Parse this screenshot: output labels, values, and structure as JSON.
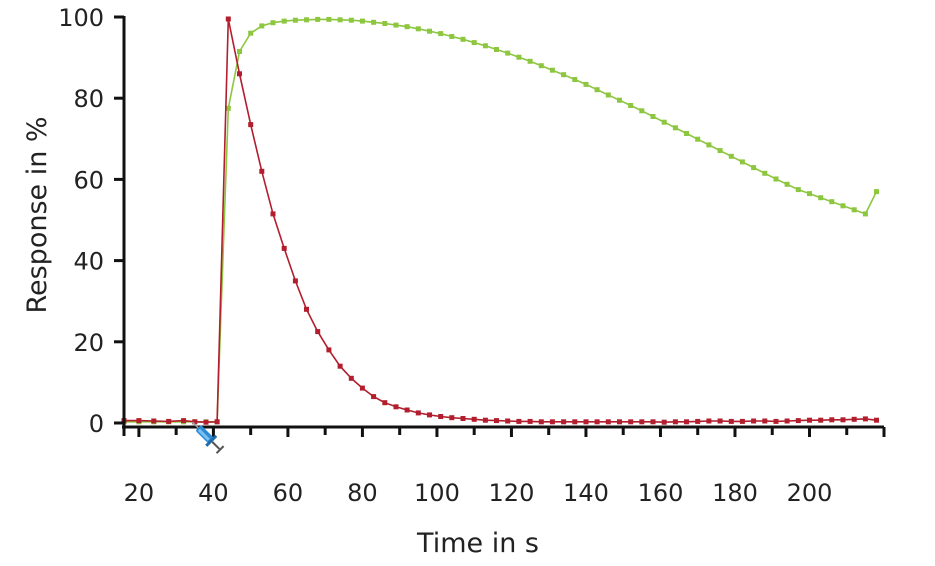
{
  "chart_data": {
    "type": "line",
    "title": "",
    "xlabel": "Time in s",
    "ylabel": "Response in %",
    "xlim": [
      16,
      220
    ],
    "ylim": [
      0,
      100
    ],
    "xticks_major": [
      20,
      40,
      60,
      80,
      100,
      120,
      140,
      160,
      180,
      200
    ],
    "xtick_labels": [
      "20",
      "40",
      "60",
      "80",
      "100",
      "120",
      "140",
      "160",
      "180",
      "200"
    ],
    "yticks": [
      0,
      20,
      40,
      60,
      80,
      100
    ],
    "ytick_labels": [
      "0",
      "20",
      "40",
      "60",
      "80",
      "100"
    ],
    "grid": false,
    "legend": "none",
    "annotation_icon": "syringe-icon",
    "annotation_x": 40,
    "series": [
      {
        "color": "#8dc63f",
        "marker": "square",
        "x": [
          16,
          20,
          24,
          28,
          32,
          35,
          38,
          41,
          44,
          47,
          50,
          53,
          56,
          59,
          62,
          65,
          68,
          71,
          74,
          77,
          80,
          83,
          86,
          89,
          92,
          95,
          98,
          101,
          104,
          107,
          110,
          113,
          116,
          119,
          122,
          125,
          128,
          131,
          134,
          137,
          140,
          143,
          146,
          149,
          152,
          155,
          158,
          161,
          164,
          167,
          170,
          173,
          176,
          179,
          182,
          185,
          188,
          191,
          194,
          197,
          200,
          203,
          206,
          209,
          212,
          215,
          218
        ],
        "y": [
          0.3,
          0.3,
          0.3,
          0.3,
          0.3,
          0.3,
          0.3,
          0.3,
          77.5,
          91.5,
          96,
          97.8,
          98.6,
          99,
          99.2,
          99.3,
          99.4,
          99.4,
          99.3,
          99.2,
          99,
          98.7,
          98.4,
          98,
          97.6,
          97.1,
          96.5,
          95.9,
          95.2,
          94.5,
          93.7,
          92.9,
          92,
          91.1,
          90.1,
          89.1,
          88,
          86.9,
          85.8,
          84.6,
          83.4,
          82.1,
          80.8,
          79.5,
          78.2,
          76.9,
          75.5,
          74.1,
          72.7,
          71.3,
          69.9,
          68.5,
          67.1,
          65.7,
          64.3,
          62.9,
          61.5,
          60.1,
          58.8,
          57.5,
          56.5,
          55.5,
          54.5,
          53.5,
          52.5,
          51.5,
          57
        ]
      },
      {
        "color": "#b21e2d",
        "marker": "square",
        "x": [
          16,
          20,
          24,
          28,
          32,
          35,
          38,
          41,
          44,
          47,
          50,
          53,
          56,
          59,
          62,
          65,
          68,
          71,
          74,
          77,
          80,
          83,
          86,
          89,
          92,
          95,
          98,
          101,
          104,
          107,
          110,
          113,
          116,
          119,
          122,
          125,
          128,
          131,
          134,
          137,
          140,
          143,
          146,
          149,
          152,
          155,
          158,
          161,
          164,
          167,
          170,
          173,
          176,
          179,
          182,
          185,
          188,
          191,
          194,
          197,
          200,
          203,
          206,
          209,
          212,
          215,
          218
        ],
        "y": [
          0.6,
          0.6,
          0.5,
          0.4,
          0.6,
          0.3,
          0.2,
          0.3,
          99.5,
          86,
          73.5,
          62,
          51.5,
          43,
          35,
          28,
          22.5,
          18,
          14,
          11,
          8.6,
          6.5,
          5,
          4,
          3.2,
          2.5,
          2,
          1.6,
          1.3,
          1.1,
          0.9,
          0.7,
          0.6,
          0.5,
          0.4,
          0.4,
          0.3,
          0.3,
          0.3,
          0.3,
          0.3,
          0.3,
          0.3,
          0.3,
          0.3,
          0.3,
          0.3,
          0.2,
          0.3,
          0.3,
          0.4,
          0.5,
          0.5,
          0.4,
          0.4,
          0.5,
          0.5,
          0.4,
          0.5,
          0.6,
          0.7,
          0.7,
          0.8,
          0.8,
          0.9,
          1,
          0.7
        ]
      }
    ]
  }
}
